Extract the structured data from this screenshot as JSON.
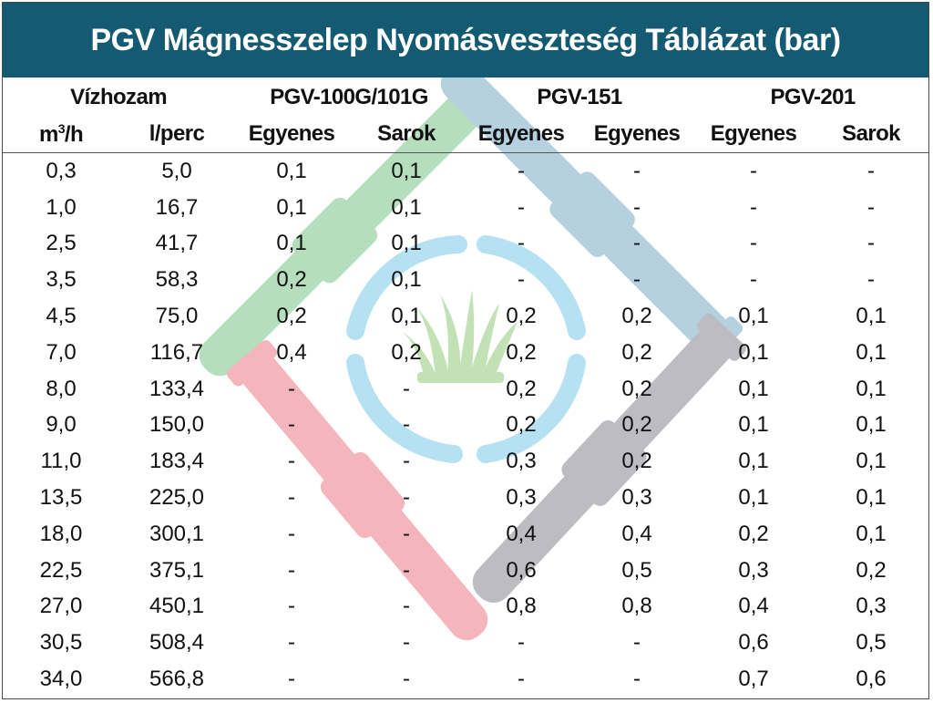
{
  "title": "PGV Mágnesszelep Nyomásveszteség Táblázat (bar)",
  "header": {
    "flow_group": "Vízhozam",
    "models": [
      "PGV-100G/101G",
      "PGV-151",
      "PGV-201"
    ],
    "columns": [
      {
        "main": "m",
        "sup": "3",
        "rest": "/h"
      },
      {
        "main": "l/perc"
      },
      {
        "main": "Egyenes"
      },
      {
        "main": "Sarok"
      },
      {
        "main": "Egyenes"
      },
      {
        "main": "Egyenes"
      },
      {
        "main": "Egyenes"
      },
      {
        "main": "Sarok"
      }
    ]
  },
  "rows": [
    [
      "0,3",
      "5,0",
      "0,1",
      "0,1",
      "-",
      "-",
      "-",
      "-"
    ],
    [
      "1,0",
      "16,7",
      "0,1",
      "0,1",
      "-",
      "-",
      "-",
      "-"
    ],
    [
      "2,5",
      "41,7",
      "0,1",
      "0,1",
      "-",
      "-",
      "-",
      "-"
    ],
    [
      "3,5",
      "58,3",
      "0,2",
      "0,1",
      "-",
      "-",
      "-",
      "-"
    ],
    [
      "4,5",
      "75,0",
      "0,2",
      "0,1",
      "0,2",
      "0,2",
      "0,1",
      "0,1"
    ],
    [
      "7,0",
      "116,7",
      "0,4",
      "0,2",
      "0,2",
      "0,2",
      "0,1",
      "0,1"
    ],
    [
      "8,0",
      "133,4",
      "-",
      "-",
      "0,2",
      "0,2",
      "0,1",
      "0,1"
    ],
    [
      "9,0",
      "150,0",
      "-",
      "-",
      "0,2",
      "0,2",
      "0,1",
      "0,1"
    ],
    [
      "11,0",
      "183,4",
      "-",
      "-",
      "0,3",
      "0,2",
      "0,1",
      "0,1"
    ],
    [
      "13,5",
      "225,0",
      "-",
      "-",
      "0,3",
      "0,3",
      "0,1",
      "0,1"
    ],
    [
      "18,0",
      "300,1",
      "-",
      "-",
      "0,4",
      "0,4",
      "0,2",
      "0,1"
    ],
    [
      "22,5",
      "375,1",
      "-",
      "-",
      "0,6",
      "0,5",
      "0,3",
      "0,2"
    ],
    [
      "27,0",
      "450,1",
      "-",
      "-",
      "0,8",
      "0,8",
      "0,4",
      "0,3"
    ],
    [
      "30,5",
      "508,4",
      "-",
      "-",
      "-",
      "-",
      "0,6",
      "0,5"
    ],
    [
      "34,0",
      "566,8",
      "-",
      "-",
      "-",
      "-",
      "0,7",
      "0,6"
    ]
  ],
  "colors": {
    "title_bg": "#145a73",
    "pipe_green": "#a8d8b0",
    "pipe_blue": "#a8c8d8",
    "pipe_red": "#f2a8b0",
    "pipe_gray": "#b0b0b8",
    "ring": "#a8dcf0",
    "grass": "#b8dca8"
  },
  "icons": [
    "pipe-diamond-logo-icon",
    "grass-icon"
  ]
}
